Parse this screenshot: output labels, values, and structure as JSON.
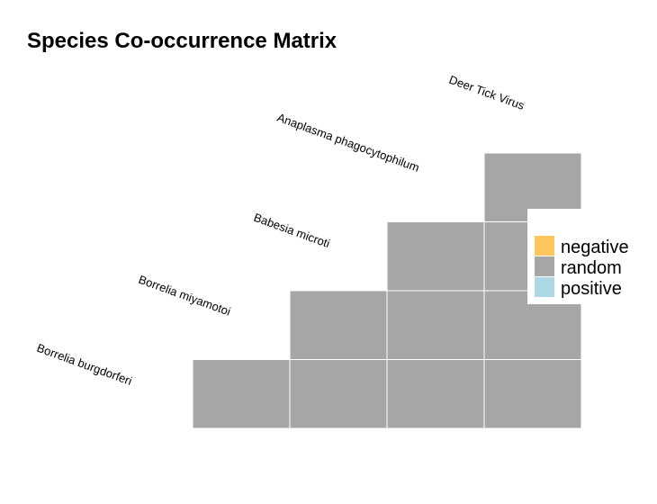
{
  "chart_data": {
    "type": "heatmap",
    "title": "Species Co-occurrence Matrix",
    "species": [
      "Borrelia burgdorferi",
      "Borrelia miyamotoi",
      "Babesia microti",
      "Anaplasma phagocytophilum",
      "Deer Tick Virus"
    ],
    "cells": [
      {
        "row": "Borrelia burgdorferi",
        "col": "Borrelia miyamotoi",
        "value": "random"
      },
      {
        "row": "Borrelia burgdorferi",
        "col": "Babesia microti",
        "value": "random"
      },
      {
        "row": "Borrelia burgdorferi",
        "col": "Anaplasma phagocytophilum",
        "value": "random"
      },
      {
        "row": "Borrelia burgdorferi",
        "col": "Deer Tick Virus",
        "value": "random"
      },
      {
        "row": "Borrelia miyamotoi",
        "col": "Babesia microti",
        "value": "random"
      },
      {
        "row": "Borrelia miyamotoi",
        "col": "Anaplasma phagocytophilum",
        "value": "random"
      },
      {
        "row": "Borrelia miyamotoi",
        "col": "Deer Tick Virus",
        "value": "random"
      },
      {
        "row": "Babesia microti",
        "col": "Anaplasma phagocytophilum",
        "value": "random"
      },
      {
        "row": "Babesia microti",
        "col": "Deer Tick Virus",
        "value": "random"
      },
      {
        "row": "Anaplasma phagocytophilum",
        "col": "Deer Tick Virus",
        "value": "random"
      }
    ],
    "legend": {
      "placement": "right",
      "entries": [
        {
          "label": "negative",
          "color": "#FFC65D"
        },
        {
          "label": "random",
          "color": "#A6A6A6"
        },
        {
          "label": "positive",
          "color": "#ADD8E6"
        }
      ]
    }
  }
}
